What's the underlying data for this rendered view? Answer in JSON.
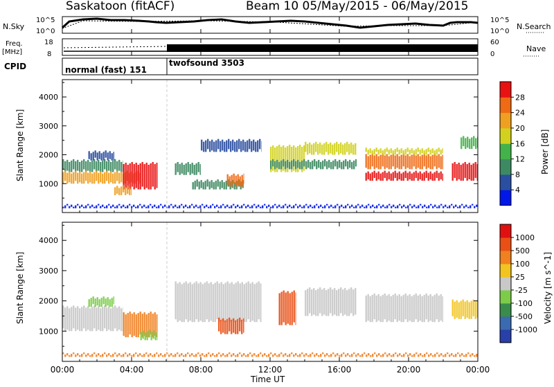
{
  "header": {
    "station": "Saskatoon (fitACF)",
    "beam_date": "Beam 10 05/May/2015 - 06/May/2015"
  },
  "noise_panel": {
    "left_label": "N.Sky",
    "right_label": "N.Search",
    "left_ticks": [
      "10^5",
      "10^0"
    ],
    "right_ticks": [
      "10^5",
      "10^0"
    ]
  },
  "freq_panel": {
    "left_label_1": "Freq.",
    "left_label_2": "[MHz]",
    "right_label": "Nave",
    "left_ticks": [
      "18",
      "8"
    ],
    "right_ticks": [
      "60",
      "0"
    ]
  },
  "cpid": {
    "label": "CPID",
    "modes": [
      "normal (fast) 151",
      "twofsound 3503"
    ]
  },
  "time_axis": {
    "label": "Time UT",
    "ticks": [
      "00:00",
      "04:00",
      "08:00",
      "12:00",
      "16:00",
      "20:00",
      "00:00"
    ]
  },
  "colors": {
    "power": [
      "#0018e8",
      "#2a4ea0",
      "#3d8a62",
      "#44b24a",
      "#d2d21e",
      "#f0a020",
      "#ee6a14",
      "#e81212"
    ],
    "velocity": [
      "#2840a8",
      "#3a6ab0",
      "#3a8c4c",
      "#7ccc4a",
      "#c8c8c8",
      "#f2c420",
      "#f08020",
      "#e85015",
      "#e01010"
    ]
  },
  "chart_data": [
    {
      "type": "heatmap",
      "name": "power",
      "ylabel": "Slant Range [km]",
      "xlabel": "",
      "y_ticks": [
        "1000",
        "2000",
        "3000",
        "4000"
      ],
      "ylim": [
        0,
        4600
      ],
      "xlim": [
        0,
        24
      ],
      "colorbar_label": "Power [dB]",
      "colorbar_ticks": [
        "4",
        "8",
        "12",
        "16",
        "20",
        "24",
        "28"
      ],
      "colorbar_range": [
        0,
        32
      ],
      "bands": [
        {
          "t0": 0.0,
          "t1": 3.5,
          "r0": 1400,
          "r1": 1800,
          "level": 2
        },
        {
          "t0": 0.0,
          "t1": 4.5,
          "r0": 1000,
          "r1": 1400,
          "level": 5
        },
        {
          "t0": 1.5,
          "t1": 3.0,
          "r0": 1800,
          "r1": 2100,
          "level": 1
        },
        {
          "t0": 3.5,
          "t1": 5.5,
          "r0": 800,
          "r1": 1700,
          "level": 7
        },
        {
          "t0": 3.0,
          "t1": 4.0,
          "r0": 600,
          "r1": 900,
          "level": 5
        },
        {
          "t0": 6.5,
          "t1": 8.0,
          "r0": 1300,
          "r1": 1700,
          "level": 2
        },
        {
          "t0": 7.5,
          "t1": 10.5,
          "r0": 800,
          "r1": 1100,
          "level": 2
        },
        {
          "t0": 9.5,
          "t1": 10.5,
          "r0": 900,
          "r1": 1300,
          "level": 6
        },
        {
          "t0": 8.0,
          "t1": 11.5,
          "r0": 2100,
          "r1": 2500,
          "level": 1
        },
        {
          "t0": 12.0,
          "t1": 14.0,
          "r0": 1400,
          "r1": 2300,
          "level": 4
        },
        {
          "t0": 14.0,
          "t1": 17.0,
          "r0": 2000,
          "r1": 2400,
          "level": 4
        },
        {
          "t0": 12.0,
          "t1": 17.0,
          "r0": 1500,
          "r1": 1800,
          "level": 2
        },
        {
          "t0": 17.5,
          "t1": 22.0,
          "r0": 1500,
          "r1": 2000,
          "level": 6
        },
        {
          "t0": 17.5,
          "t1": 22.0,
          "r0": 1100,
          "r1": 1400,
          "level": 7
        },
        {
          "t0": 17.5,
          "t1": 22.0,
          "r0": 2000,
          "r1": 2200,
          "level": 4
        },
        {
          "t0": 22.5,
          "t1": 24.0,
          "r0": 1100,
          "r1": 1700,
          "level": 7
        },
        {
          "t0": 23.0,
          "t1": 24.0,
          "r0": 2200,
          "r1": 2600,
          "level": 3
        },
        {
          "t0": 0.0,
          "t1": 24.0,
          "r0": 150,
          "r1": 250,
          "level": 0
        }
      ]
    },
    {
      "type": "heatmap",
      "name": "velocity",
      "ylabel": "Slant Range [km]",
      "xlabel": "Time UT",
      "y_ticks": [
        "1000",
        "2000",
        "3000",
        "4000"
      ],
      "ylim": [
        0,
        4600
      ],
      "xlim": [
        0,
        24
      ],
      "colorbar_label": "Velocity [m s^-1]",
      "colorbar_ticks": [
        "1000",
        "500",
        "100",
        "25",
        "-25",
        "-100",
        "-500",
        "-1000"
      ],
      "bands": [
        {
          "t0": 0.0,
          "t1": 3.5,
          "r0": 1000,
          "r1": 1800,
          "level": 4
        },
        {
          "t0": 1.5,
          "t1": 3.0,
          "r0": 1800,
          "r1": 2100,
          "level": 3
        },
        {
          "t0": 3.5,
          "t1": 5.5,
          "r0": 800,
          "r1": 1600,
          "level": 6
        },
        {
          "t0": 4.5,
          "t1": 5.5,
          "r0": 700,
          "r1": 1000,
          "level": 3
        },
        {
          "t0": 6.5,
          "t1": 11.5,
          "r0": 1300,
          "r1": 2600,
          "level": 4
        },
        {
          "t0": 9.0,
          "t1": 10.5,
          "r0": 900,
          "r1": 1400,
          "level": 7
        },
        {
          "t0": 12.5,
          "t1": 13.5,
          "r0": 1200,
          "r1": 2300,
          "level": 7
        },
        {
          "t0": 14.0,
          "t1": 17.0,
          "r0": 1500,
          "r1": 2400,
          "level": 4
        },
        {
          "t0": 17.5,
          "t1": 22.0,
          "r0": 1300,
          "r1": 2200,
          "level": 4
        },
        {
          "t0": 22.5,
          "t1": 24.0,
          "r0": 1400,
          "r1": 2000,
          "level": 5
        },
        {
          "t0": 0.0,
          "t1": 24.0,
          "r0": 150,
          "r1": 250,
          "level": 6
        }
      ]
    }
  ]
}
